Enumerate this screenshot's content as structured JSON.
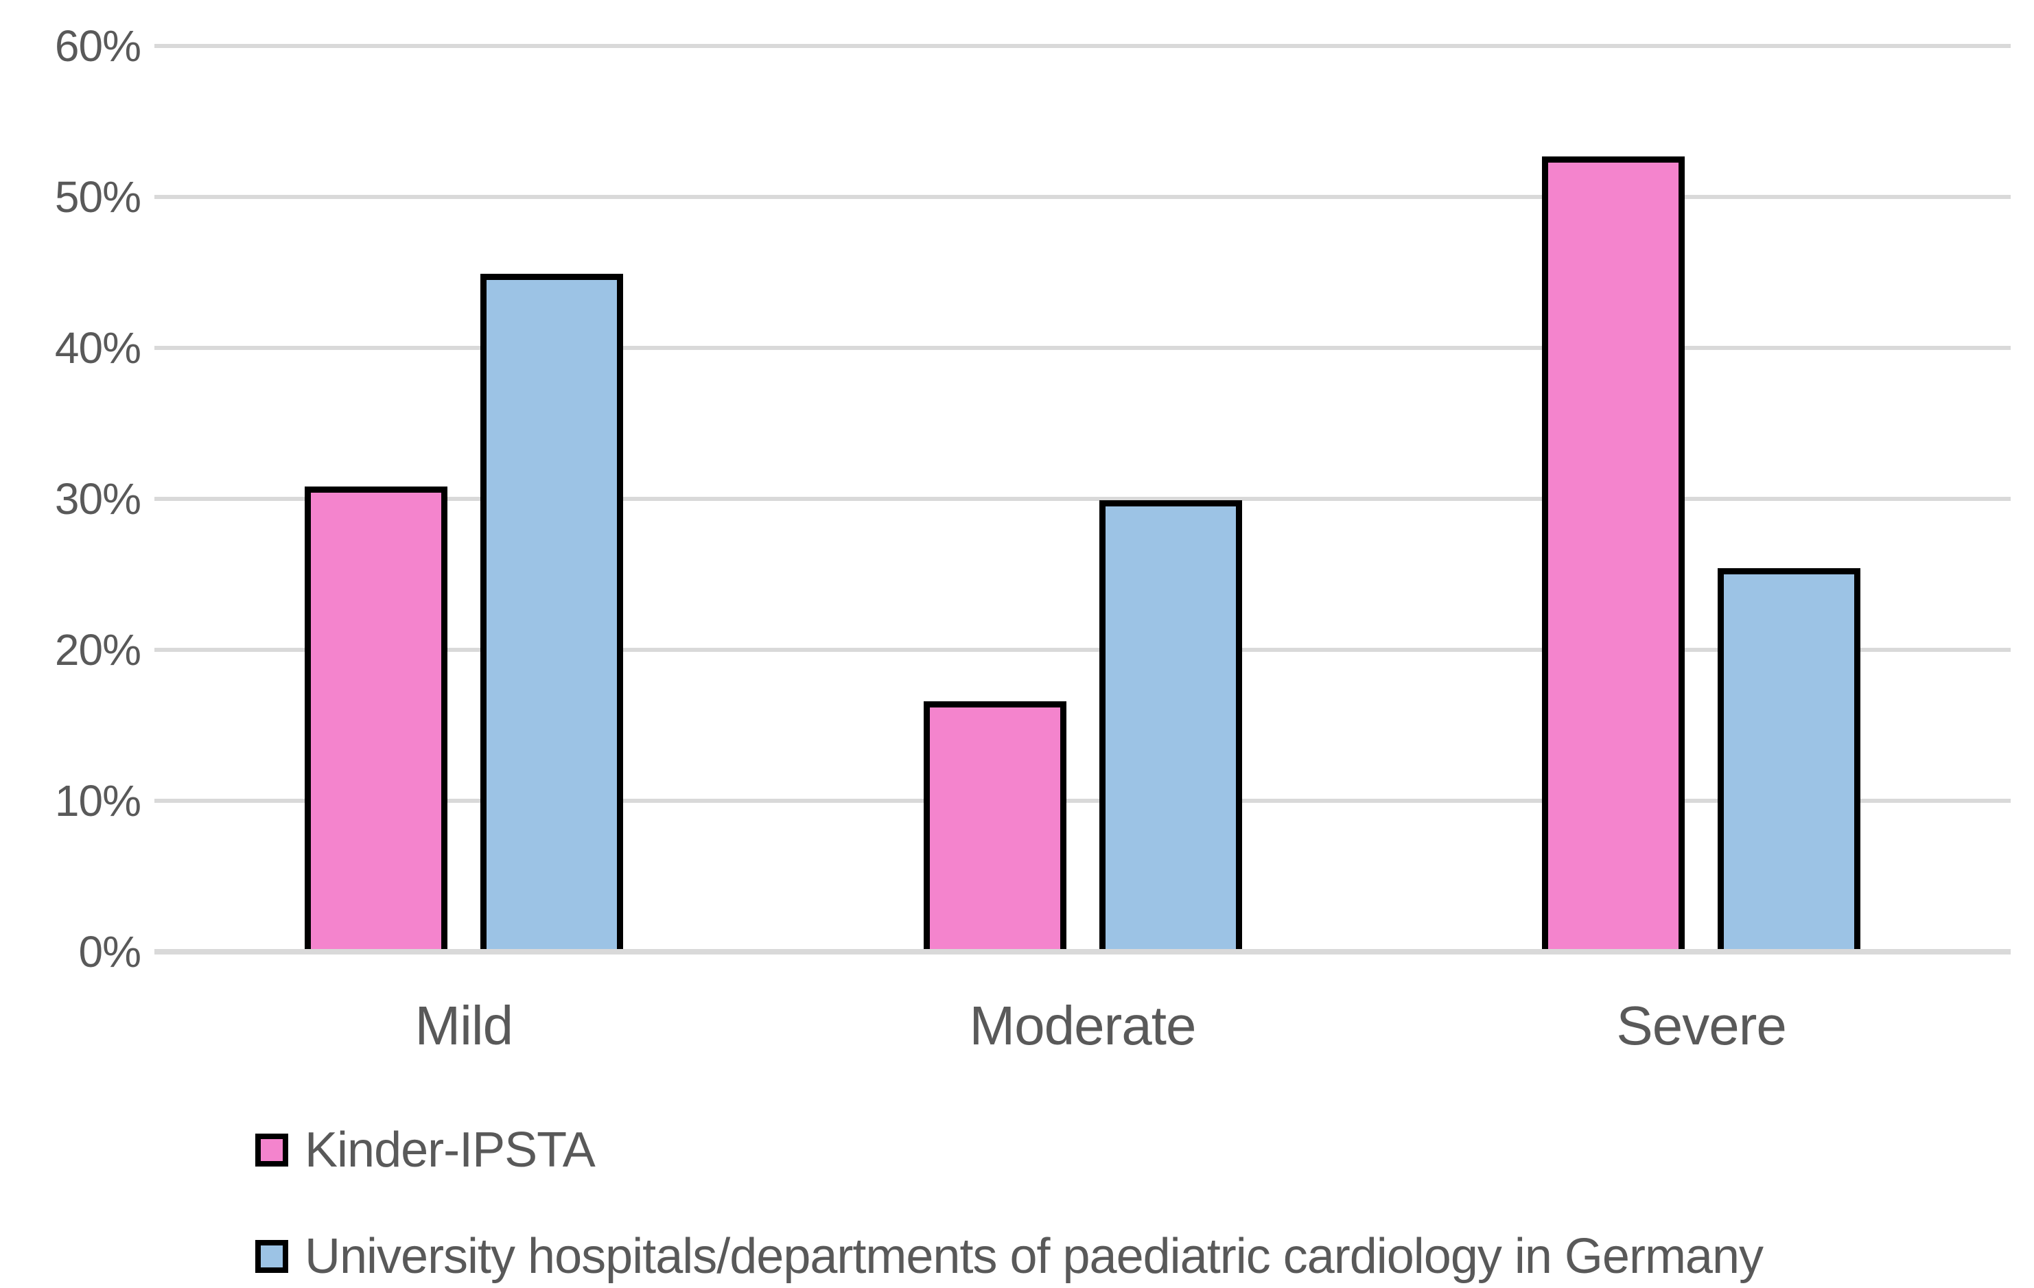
{
  "chart_data": {
    "type": "bar",
    "title": "",
    "xlabel": "",
    "ylabel": "",
    "categories": [
      "Mild",
      "Moderate",
      "Severe"
    ],
    "series": [
      {
        "name": "Kinder-IPSTA",
        "color": "#F484CD",
        "values": [
          30.8,
          16.6,
          52.7
        ]
      },
      {
        "name": "University hospitals/departments of paediatric cardiology in Germany",
        "color": "#9CC3E5",
        "values": [
          44.9,
          29.9,
          25.4
        ]
      }
    ],
    "ylim": [
      0,
      60
    ],
    "ytick_step": 10,
    "ytick_labels": [
      "0%",
      "10%",
      "20%",
      "30%",
      "40%",
      "50%",
      "60%"
    ],
    "grid": "horizontal-only",
    "legend_position": "bottom-left",
    "colors": {
      "bar_border": "#000000",
      "gridline": "#D9D9D9",
      "axis_line": "#D9D9D9",
      "text": "#595959",
      "background": "#FFFFFF"
    }
  }
}
